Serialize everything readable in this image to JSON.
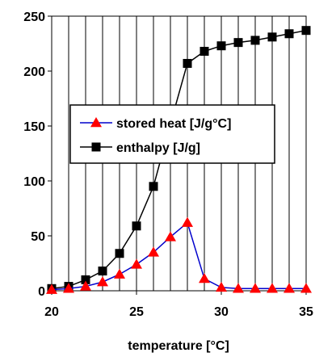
{
  "chart_data": {
    "type": "line",
    "title": "",
    "xlabel": "temperature [°C]",
    "ylabel": "",
    "xlim": [
      20,
      35
    ],
    "ylim": [
      0,
      250
    ],
    "xticks": [
      20,
      25,
      30,
      35
    ],
    "yticks": [
      0,
      50,
      100,
      150,
      200,
      250
    ],
    "grid": "vertical",
    "legend_position": "center-left",
    "series": [
      {
        "name": "stored heat [J/g°C]",
        "color": "#0000cc",
        "marker": "triangle",
        "marker_color": "#ff0000",
        "x": [
          20,
          21,
          22,
          23,
          24,
          25,
          26,
          27,
          28,
          29,
          30,
          31,
          32,
          33,
          34,
          35
        ],
        "y": [
          1,
          2,
          4,
          8,
          15,
          24,
          35,
          49,
          62,
          11,
          3,
          2,
          2,
          2,
          2,
          2
        ]
      },
      {
        "name": "enthalpy [J/g]",
        "color": "#000000",
        "marker": "square",
        "marker_color": "#000000",
        "x": [
          20,
          21,
          22,
          23,
          24,
          25,
          26,
          27,
          28,
          29,
          30,
          31,
          32,
          33,
          34,
          35
        ],
        "y": [
          2,
          4,
          10,
          18,
          34,
          59,
          95,
          152,
          207,
          218,
          223,
          226,
          228,
          231,
          234,
          237
        ]
      }
    ]
  }
}
